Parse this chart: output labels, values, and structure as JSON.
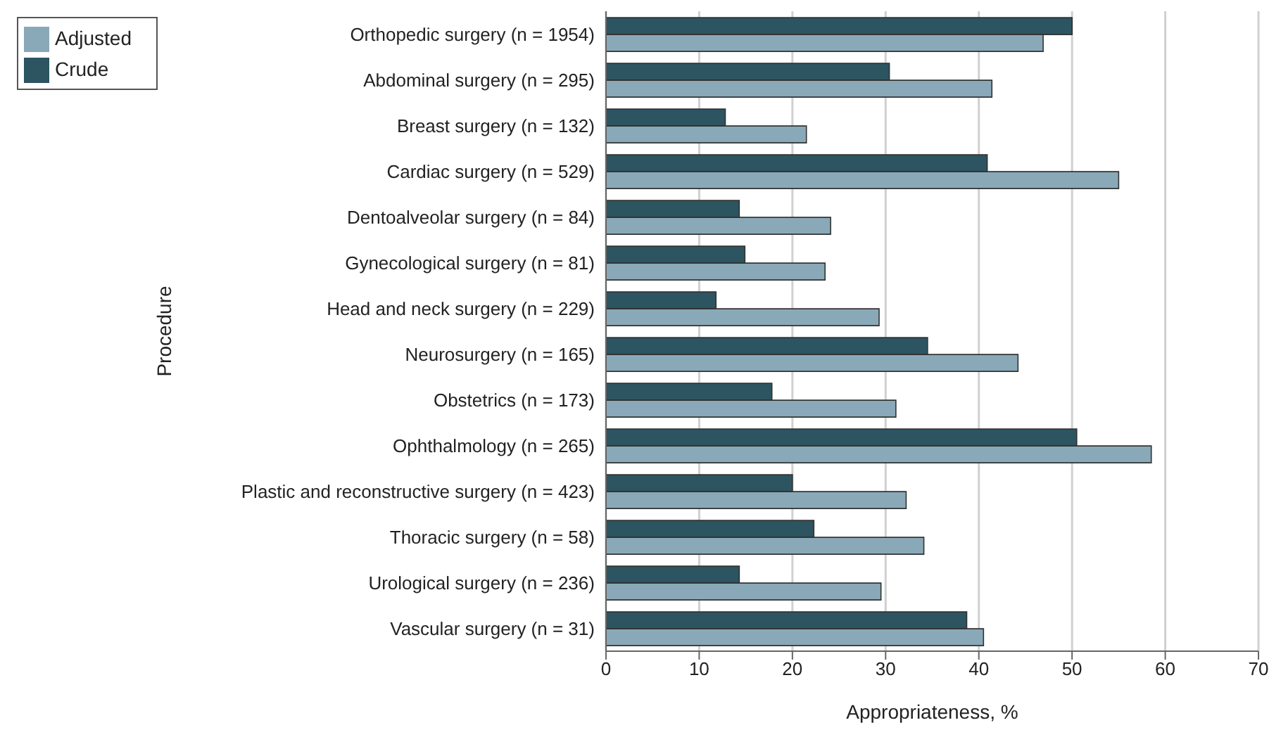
{
  "chart_data": {
    "type": "bar",
    "orientation": "horizontal",
    "xlabel": "Appropriateness, %",
    "ylabel": "Procedure",
    "categories": [
      "Orthopedic surgery (n = 1954)",
      "Abdominal surgery (n = 295)",
      "Breast surgery (n = 132)",
      "Cardiac surgery (n = 529)",
      "Dentoalveolar surgery (n = 84)",
      "Gynecological surgery (n = 81)",
      "Head and neck surgery (n = 229)",
      "Neurosurgery (n = 165)",
      "Obstetrics (n = 173)",
      "Ophthalmology (n = 265)",
      "Plastic and reconstructive surgery (n = 423)",
      "Thoracic surgery (n = 58)",
      "Urological surgery (n = 236)",
      "Vascular surgery (n = 31)"
    ],
    "series": [
      {
        "name": "Crude",
        "color": "#2d5461",
        "values": [
          50.0,
          30.4,
          12.8,
          40.9,
          14.3,
          14.9,
          11.8,
          34.5,
          17.8,
          50.5,
          20.0,
          22.3,
          14.3,
          38.7
        ]
      },
      {
        "name": "Adjusted",
        "color": "#8aa9b8",
        "values": [
          46.9,
          41.4,
          21.5,
          55.0,
          24.1,
          23.5,
          29.3,
          44.2,
          31.1,
          58.5,
          32.2,
          34.1,
          29.5,
          40.5
        ]
      }
    ],
    "xlim": [
      0,
      70
    ],
    "xticks": [
      0,
      10,
      20,
      30,
      40,
      50,
      60,
      70
    ],
    "grid": "x",
    "legend": "top left"
  }
}
